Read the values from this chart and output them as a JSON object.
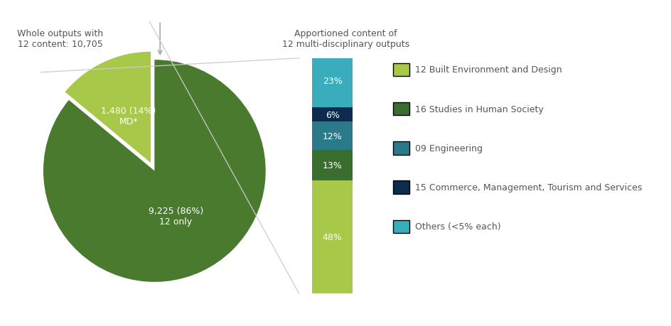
{
  "pie_labels": [
    "9,225 (86%)\n12 only",
    "1,480 (14%)\nMD*"
  ],
  "pie_values": [
    86,
    14
  ],
  "pie_colors": [
    "#4a7a2e",
    "#a8c84a"
  ],
  "pie_explode": [
    0,
    0.08
  ],
  "bar_segments": [
    48,
    13,
    12,
    6,
    23
  ],
  "bar_labels": [
    "48%",
    "13%",
    "12%",
    "6%",
    "23%"
  ],
  "bar_colors": [
    "#a8c84a",
    "#3a6e2e",
    "#2a7a8a",
    "#0d2b4e",
    "#3aadbd"
  ],
  "legend_labels": [
    "12 Built Environment and Design",
    "16 Studies in Human Society",
    "09 Engineering",
    "15 Commerce, Management, Tourism and Services",
    "Others (<5% each)"
  ],
  "legend_colors": [
    "#a8c84a",
    "#3a6e2e",
    "#2a7a8a",
    "#0d2b4e",
    "#3aadbd"
  ],
  "annotation_left": "Whole outputs with\n12 content: 10,705",
  "annotation_right": "Apportioned content of\n12 multi-disciplinary outputs",
  "bg_color": "#ffffff",
  "text_color": "#555555",
  "label_fontsize": 9,
  "annotation_fontsize": 9
}
